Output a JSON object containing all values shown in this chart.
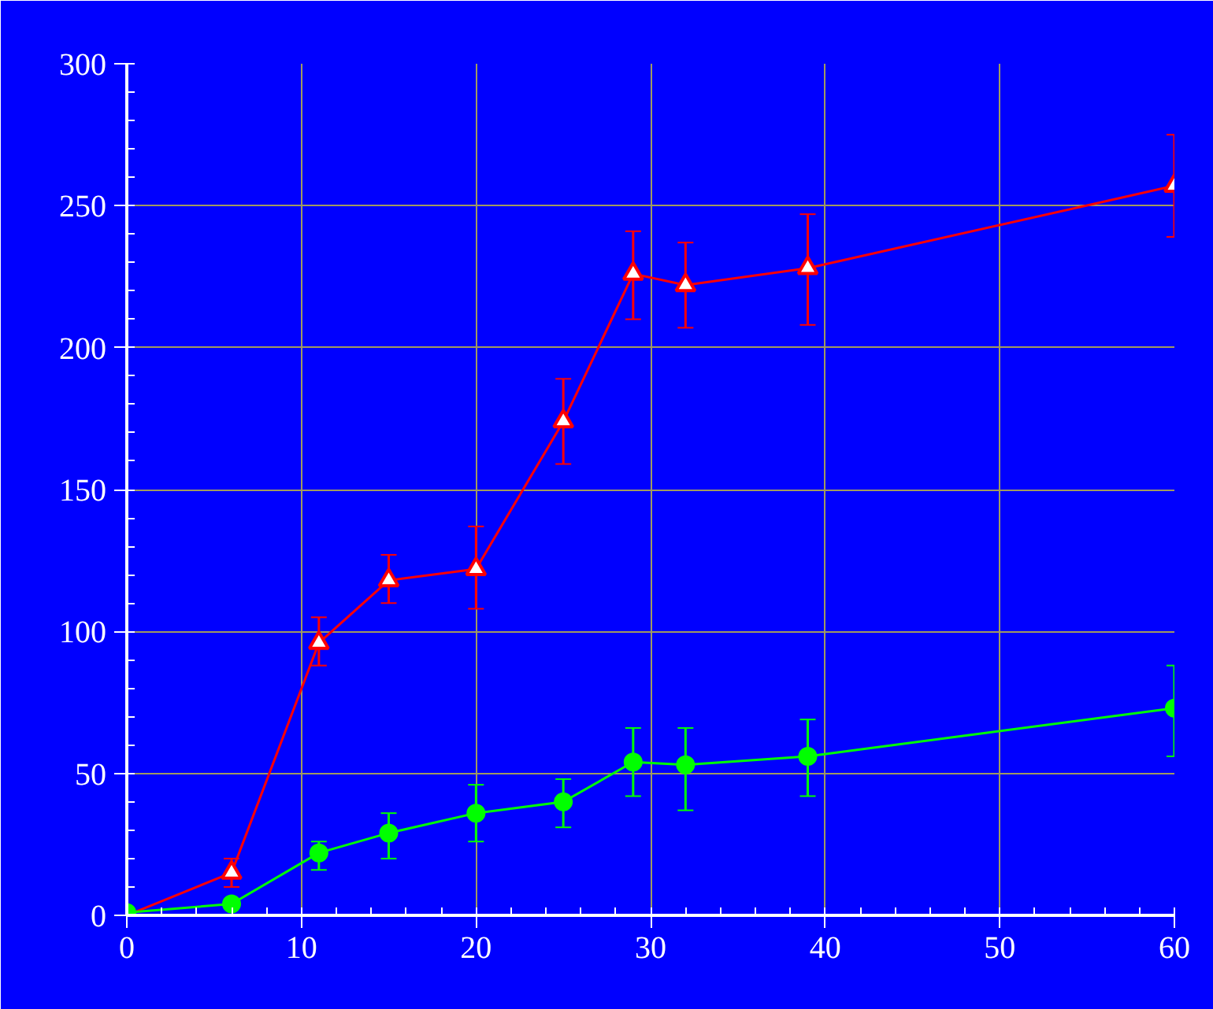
{
  "chart_data": {
    "type": "line",
    "x": [
      0,
      6,
      11,
      15,
      20,
      25,
      29,
      32,
      39,
      60
    ],
    "series": [
      {
        "color": "#ff0000",
        "marker": "triangle",
        "values": [
          0,
          15,
          96,
          118,
          122,
          174,
          226,
          222,
          228,
          257
        ],
        "errors": [
          null,
          [
            10,
            20
          ],
          [
            88,
            105
          ],
          [
            110,
            127
          ],
          [
            108,
            137
          ],
          [
            159,
            189
          ],
          [
            210,
            241
          ],
          [
            207,
            237
          ],
          [
            208,
            247
          ],
          [
            239,
            275
          ]
        ]
      },
      {
        "color": "#00ff00",
        "marker": "circle",
        "values": [
          1,
          4,
          22,
          29,
          36,
          40,
          54,
          53,
          56,
          73
        ],
        "errors": [
          null,
          null,
          [
            16,
            26
          ],
          [
            20,
            36
          ],
          [
            26,
            46
          ],
          [
            31,
            48
          ],
          [
            42,
            66
          ],
          [
            37,
            66
          ],
          [
            42,
            69
          ],
          [
            56,
            88
          ]
        ]
      }
    ],
    "xlim": [
      0,
      60
    ],
    "xticks": [
      0,
      10,
      20,
      30,
      40,
      50,
      60
    ],
    "ylim": [
      0,
      300
    ],
    "yticks": [
      0,
      50,
      100,
      150,
      200,
      250,
      300
    ],
    "grid": true,
    "line_style": "solid"
  }
}
